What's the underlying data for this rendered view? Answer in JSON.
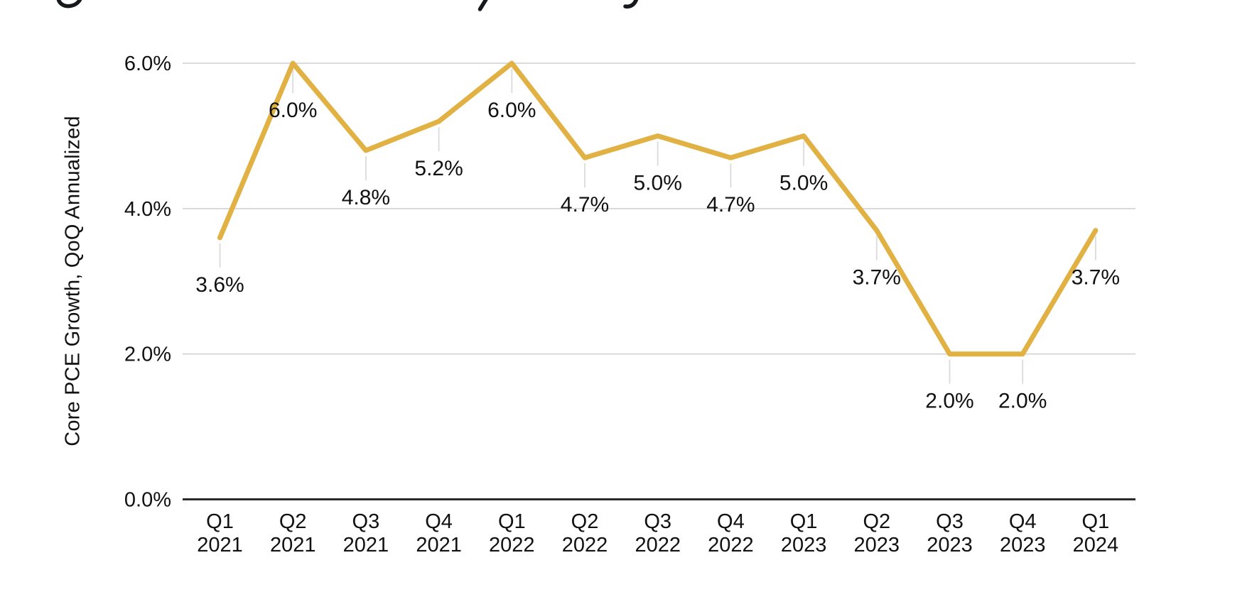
{
  "page": {
    "background_color": "#FFFFFF"
  },
  "clipped_title": {
    "description": "Bottom edge of a cut-off italic heading at the very top; only three letter descender fragments are visible",
    "fragments": [
      "g-descender",
      "p-descender",
      "y-descender"
    ],
    "color": "#17181C"
  },
  "chart_data": {
    "type": "line",
    "title": "",
    "xlabel": "",
    "ylabel": "Core PCE Growth, QoQ Annualized",
    "categories": [
      {
        "quarter": "Q1",
        "year": "2021"
      },
      {
        "quarter": "Q2",
        "year": "2021"
      },
      {
        "quarter": "Q3",
        "year": "2021"
      },
      {
        "quarter": "Q4",
        "year": "2021"
      },
      {
        "quarter": "Q1",
        "year": "2022"
      },
      {
        "quarter": "Q2",
        "year": "2022"
      },
      {
        "quarter": "Q3",
        "year": "2022"
      },
      {
        "quarter": "Q4",
        "year": "2022"
      },
      {
        "quarter": "Q1",
        "year": "2023"
      },
      {
        "quarter": "Q2",
        "year": "2023"
      },
      {
        "quarter": "Q3",
        "year": "2023"
      },
      {
        "quarter": "Q4",
        "year": "2023"
      },
      {
        "quarter": "Q1",
        "year": "2024"
      }
    ],
    "values": [
      3.6,
      6.0,
      4.8,
      5.2,
      6.0,
      4.7,
      5.0,
      4.7,
      5.0,
      3.7,
      2.0,
      2.0,
      3.7
    ],
    "data_labels": [
      "3.6%",
      "6.0%",
      "4.8%",
      "5.2%",
      "6.0%",
      "4.7%",
      "5.0%",
      "4.7%",
      "5.0%",
      "3.7%",
      "2.0%",
      "2.0%",
      "3.7%"
    ],
    "y_ticks": [
      {
        "value": 6.0,
        "label": "6.0%"
      },
      {
        "value": 4.0,
        "label": "4.0%"
      },
      {
        "value": 2.0,
        "label": "2.0%"
      },
      {
        "value": 0.0,
        "label": "0.0%"
      }
    ],
    "ylim": [
      0,
      6.0
    ],
    "grid": "horizontal-only",
    "legend": "none",
    "colors": {
      "line": "#E1B243",
      "gridline": "#D2D2D2",
      "axis_line": "#2B2B2B",
      "text": "#111111",
      "leader_line": "#DEDEDE"
    }
  }
}
